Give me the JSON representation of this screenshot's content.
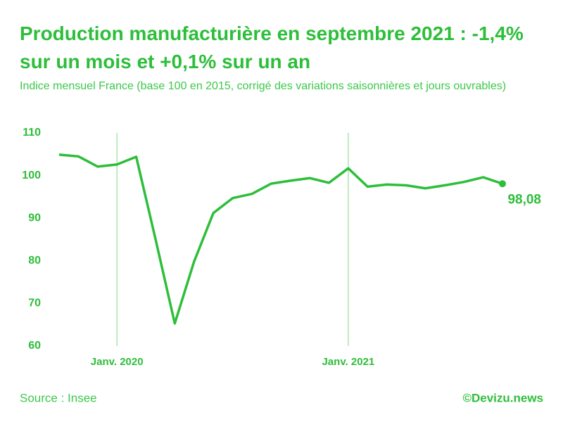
{
  "chart_data": {
    "type": "line",
    "title": "Production manufacturière en septembre 2021 : -1,4% sur un mois et +0,1% sur un an",
    "subtitle": "Indice mensuel France (base 100 en 2015, corrigé des variations saisonnières et jours ouvrables)",
    "categories": [
      null,
      null,
      null,
      "Janv. 2020",
      null,
      null,
      null,
      null,
      null,
      null,
      null,
      null,
      null,
      null,
      null,
      "Janv. 2021",
      null,
      null,
      null,
      null,
      null,
      null,
      null,
      null
    ],
    "series": [
      {
        "color": "#2dbe3a",
        "values": [
          104.9,
          104.5,
          102.1,
          102.6,
          104.4,
          85.1,
          65.3,
          79.8,
          91.2,
          94.7,
          95.7,
          98.1,
          98.8,
          99.4,
          98.3,
          101.7,
          97.4,
          97.9,
          97.7,
          97.0,
          97.7,
          98.5,
          99.6,
          98.08
        ],
        "value_labels": [
          null,
          null,
          null,
          null,
          null,
          null,
          null,
          null,
          null,
          null,
          null,
          null,
          null,
          null,
          null,
          null,
          null,
          null,
          null,
          null,
          null,
          null,
          null,
          "98,08"
        ]
      }
    ],
    "ylim": [
      60,
      110
    ],
    "yticks": [
      60,
      70,
      80,
      90,
      100,
      110
    ],
    "source": "Source : Insee",
    "credit": "©Devizu.news"
  }
}
